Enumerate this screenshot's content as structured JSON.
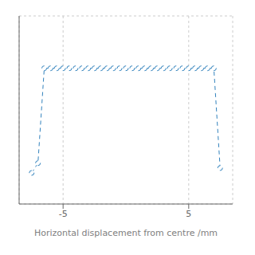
{
  "chart_data": {
    "type": "line",
    "xlabel": "Horizontal displacement from centre /mm",
    "x": [
      -7.5,
      -7.0,
      -6.5,
      -6.0,
      -5.5,
      -5.0,
      -4.5,
      -4.0,
      -3.5,
      -3.0,
      -2.5,
      -2.0,
      -1.5,
      -1.0,
      -0.5,
      0.0,
      0.5,
      1.0,
      1.5,
      2.0,
      2.5,
      3.0,
      3.5,
      4.0,
      4.5,
      5.0,
      5.5,
      6.0,
      6.5,
      7.0,
      7.5
    ],
    "values": [
      0.04,
      0.1,
      0.68,
      0.68,
      0.68,
      0.68,
      0.68,
      0.68,
      0.68,
      0.68,
      0.68,
      0.68,
      0.68,
      0.68,
      0.68,
      0.68,
      0.68,
      0.68,
      0.68,
      0.68,
      0.68,
      0.68,
      0.68,
      0.68,
      0.68,
      0.68,
      0.68,
      0.68,
      0.68,
      0.68,
      0.07
    ],
    "xlim": [
      -8.5,
      8.5
    ],
    "ylim": [
      -0.15,
      1.0
    ],
    "xticks": [
      -5,
      5
    ],
    "yticks": [
      0,
      0.25,
      0.5,
      0.75,
      1.0
    ],
    "grid": true,
    "tick_labels": "x",
    "marker": "circle",
    "line_style": "dashed"
  }
}
